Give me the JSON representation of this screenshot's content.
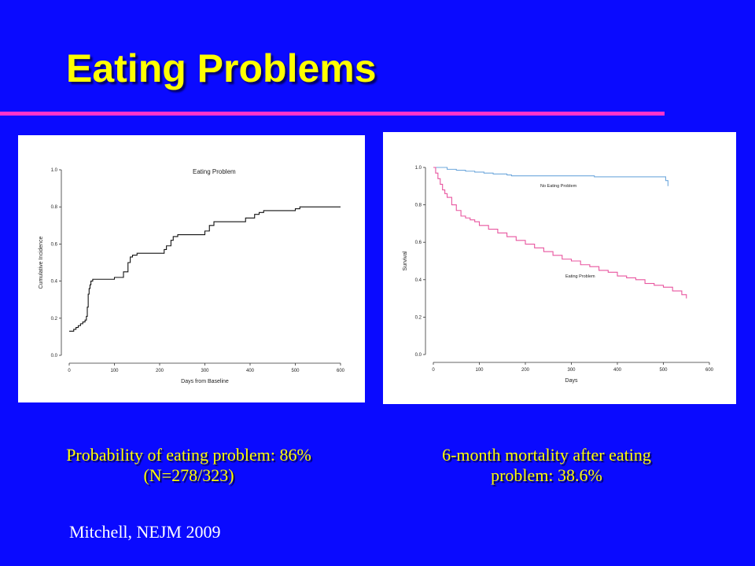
{
  "slide": {
    "title": "Eating Problems",
    "caption_left_line1": "Probability of  eating problem: 86%",
    "caption_left_line2": "(N=278/323)",
    "caption_right_line1": "6-month mortality after eating",
    "caption_right_line2": "problem: 38.6%",
    "citation": "Mitchell, NEJM  2009"
  },
  "colors": {
    "background": "#0a0aff",
    "title": "#ffff00",
    "divider": "#ff33cc",
    "no_eating_problem_line": "#6fa8dc",
    "eating_problem_line": "#e8559f"
  },
  "chart_data": [
    {
      "type": "line",
      "title": "Eating Problem",
      "xlabel": "Days from Baseline",
      "ylabel": "Cumulative Incidence",
      "xlim": [
        0,
        600
      ],
      "ylim": [
        0,
        1.0
      ],
      "x_ticks": [
        "0",
        "100",
        "200",
        "300",
        "400",
        "500",
        "600"
      ],
      "y_ticks": [
        "0.0",
        "0.2",
        "0.4",
        "0.6",
        "0.8",
        "1.0"
      ],
      "step": true,
      "series": [
        {
          "x": [
            0,
            10,
            15,
            20,
            25,
            30,
            35,
            38,
            40,
            42,
            44,
            46,
            48,
            52,
            60,
            100,
            120,
            130,
            135,
            140,
            150,
            210,
            215,
            225,
            230,
            240,
            300,
            310,
            320,
            390,
            410,
            420,
            430,
            500,
            510,
            600
          ],
          "y": [
            0.13,
            0.14,
            0.15,
            0.16,
            0.17,
            0.18,
            0.19,
            0.21,
            0.26,
            0.33,
            0.36,
            0.38,
            0.4,
            0.41,
            0.41,
            0.42,
            0.45,
            0.5,
            0.53,
            0.54,
            0.55,
            0.57,
            0.59,
            0.62,
            0.64,
            0.65,
            0.67,
            0.7,
            0.72,
            0.74,
            0.76,
            0.77,
            0.78,
            0.79,
            0.8,
            0.8
          ]
        }
      ]
    },
    {
      "type": "line",
      "title": "",
      "xlabel": "Days",
      "ylabel": "Survival",
      "xlim": [
        0,
        600
      ],
      "ylim": [
        0,
        1.0
      ],
      "x_ticks": [
        "0",
        "100",
        "200",
        "300",
        "400",
        "500",
        "600"
      ],
      "y_ticks": [
        "0.0",
        "0.2",
        "0.4",
        "0.6",
        "0.8",
        "1.0"
      ],
      "step": true,
      "series": [
        {
          "name": "No Eating Problem",
          "x": [
            0,
            30,
            50,
            70,
            90,
            110,
            130,
            160,
            170,
            200,
            250,
            300,
            350,
            400,
            450,
            500,
            505,
            510
          ],
          "y": [
            1.0,
            0.99,
            0.985,
            0.98,
            0.975,
            0.97,
            0.965,
            0.96,
            0.955,
            0.955,
            0.955,
            0.955,
            0.95,
            0.95,
            0.95,
            0.95,
            0.93,
            0.9
          ]
        },
        {
          "name": "Eating Problem",
          "x": [
            0,
            5,
            10,
            15,
            20,
            25,
            30,
            40,
            50,
            60,
            70,
            80,
            90,
            100,
            120,
            140,
            160,
            180,
            200,
            220,
            240,
            260,
            280,
            300,
            320,
            340,
            360,
            380,
            400,
            420,
            440,
            460,
            480,
            500,
            520,
            540,
            550
          ],
          "y": [
            1.0,
            0.97,
            0.94,
            0.91,
            0.88,
            0.86,
            0.84,
            0.8,
            0.77,
            0.74,
            0.73,
            0.72,
            0.71,
            0.69,
            0.67,
            0.65,
            0.63,
            0.61,
            0.59,
            0.57,
            0.55,
            0.53,
            0.51,
            0.5,
            0.48,
            0.47,
            0.45,
            0.44,
            0.42,
            0.41,
            0.4,
            0.38,
            0.37,
            0.36,
            0.34,
            0.32,
            0.3
          ]
        }
      ]
    }
  ]
}
